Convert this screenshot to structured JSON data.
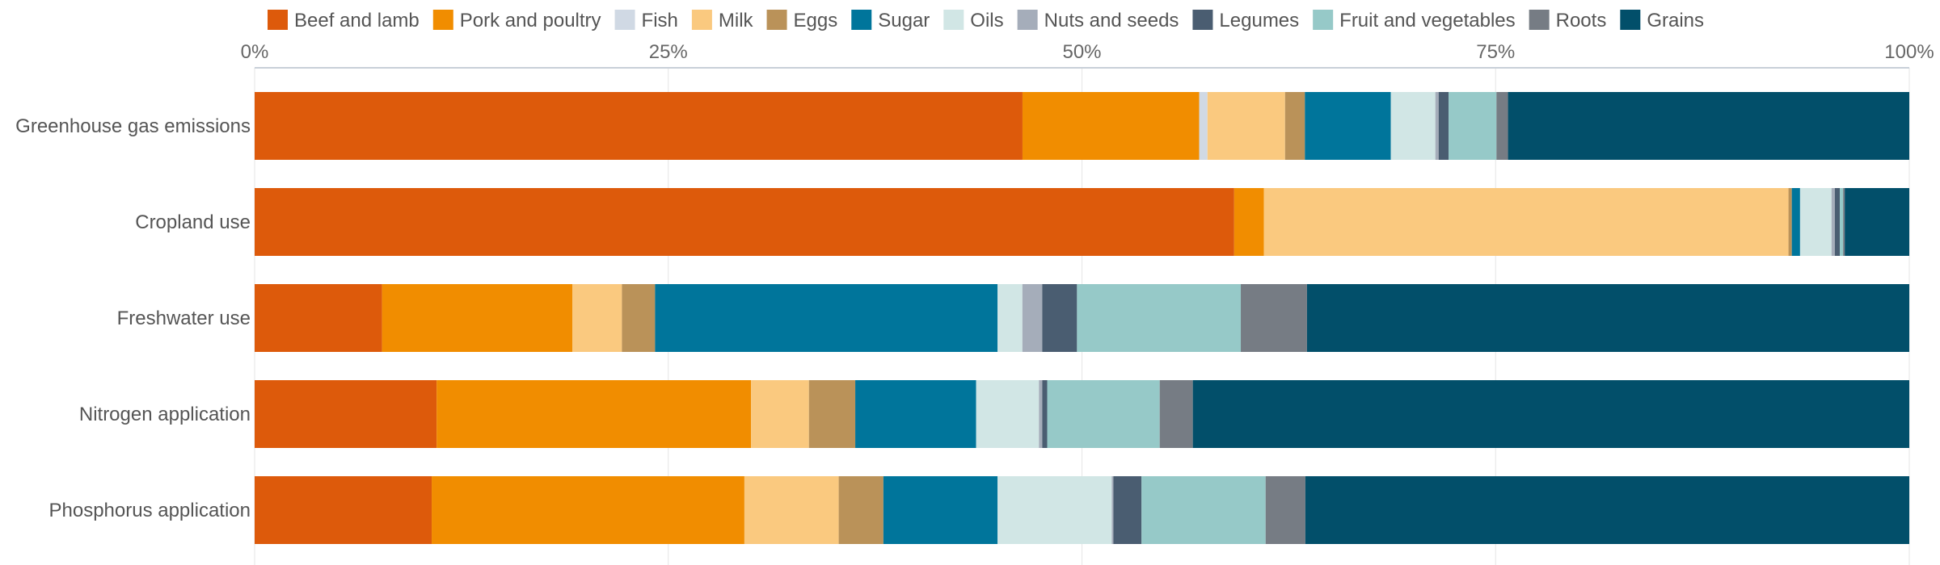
{
  "chart_data": {
    "type": "bar",
    "orientation": "horizontal",
    "stacked": true,
    "categories": [
      "Greenhouse gas emissions",
      "Cropland use",
      "Freshwater use",
      "Nitrogen application",
      "Phosphorus application"
    ],
    "xlim": [
      0,
      100
    ],
    "x_ticks": [
      "0%",
      "25%",
      "50%",
      "75%",
      "100%"
    ],
    "legend_position": "top",
    "grid": true,
    "series": [
      {
        "name": "Beef and lamb",
        "color": "#dd5a0b",
        "values": [
          46.5,
          59.2,
          7.7,
          11.0,
          10.7
        ]
      },
      {
        "name": "Pork and poultry",
        "color": "#f18d00",
        "values": [
          10.7,
          1.8,
          11.5,
          19.0,
          18.9
        ]
      },
      {
        "name": "Fish",
        "color": "#d0d9e4",
        "values": [
          0.5,
          0.0,
          0.0,
          0.0,
          0.0
        ]
      },
      {
        "name": "Milk",
        "color": "#fac97f",
        "values": [
          4.7,
          31.7,
          3.0,
          3.5,
          5.7
        ]
      },
      {
        "name": "Eggs",
        "color": "#ba9259",
        "values": [
          1.2,
          0.2,
          2.0,
          2.8,
          2.7
        ]
      },
      {
        "name": "Sugar",
        "color": "#00759b",
        "values": [
          5.2,
          0.5,
          20.7,
          7.3,
          6.9
        ]
      },
      {
        "name": "Oils",
        "color": "#d1e6e5",
        "values": [
          2.7,
          1.9,
          1.5,
          3.8,
          6.9
        ]
      },
      {
        "name": "Nuts and seeds",
        "color": "#a5adba",
        "values": [
          0.2,
          0.2,
          1.2,
          0.2,
          0.1
        ]
      },
      {
        "name": "Legumes",
        "color": "#4a5d71",
        "values": [
          0.6,
          0.3,
          2.1,
          0.3,
          1.7
        ]
      },
      {
        "name": "Fruit and vegetables",
        "color": "#96c9c8",
        "values": [
          2.9,
          0.2,
          9.9,
          6.8,
          7.5
        ]
      },
      {
        "name": "Roots",
        "color": "#767c84",
        "values": [
          0.7,
          0.1,
          4.0,
          2.0,
          2.4
        ]
      },
      {
        "name": "Grains",
        "color": "#024f6a",
        "values": [
          24.3,
          3.9,
          36.4,
          43.3,
          36.5
        ]
      }
    ]
  }
}
